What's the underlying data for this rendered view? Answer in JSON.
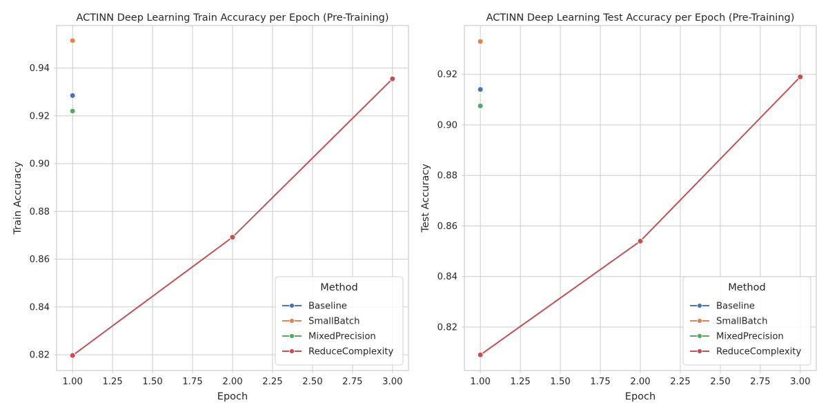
{
  "chart_data": [
    {
      "type": "line",
      "title": "ACTINN Deep Learning Train Accuracy per Epoch (Pre-Training)",
      "xlabel": "Epoch",
      "ylabel": "Train Accuracy",
      "xlim": [
        0.9,
        3.1
      ],
      "ylim": [
        0.8134,
        0.9578
      ],
      "xticks": [
        1.0,
        1.25,
        1.5,
        1.75,
        2.0,
        2.25,
        2.5,
        2.75,
        3.0
      ],
      "xtick_labels": [
        "1.00",
        "1.25",
        "1.50",
        "1.75",
        "2.00",
        "2.25",
        "2.50",
        "2.75",
        "3.00"
      ],
      "yticks": [
        0.82,
        0.84,
        0.86,
        0.88,
        0.9,
        0.92,
        0.94
      ],
      "ytick_labels": [
        "0.82",
        "0.84",
        "0.86",
        "0.88",
        "0.90",
        "0.92",
        "0.94"
      ],
      "grid": true,
      "legend": {
        "title": "Method",
        "position": "lower-right"
      },
      "series": [
        {
          "name": "Baseline",
          "color": "#4c72b0",
          "x": [
            1
          ],
          "y": [
            0.9285
          ]
        },
        {
          "name": "SmallBatch",
          "color": "#dd8452",
          "x": [
            1
          ],
          "y": [
            0.9515
          ]
        },
        {
          "name": "MixedPrecision",
          "color": "#55a868",
          "x": [
            1
          ],
          "y": [
            0.922
          ]
        },
        {
          "name": "ReduceComplexity",
          "color": "#c44e52",
          "x": [
            1,
            2,
            3
          ],
          "y": [
            0.8197,
            0.8692,
            0.9355
          ]
        }
      ]
    },
    {
      "type": "line",
      "title": "ACTINN Deep Learning Test Accuracy per Epoch (Pre-Training)",
      "xlabel": "Epoch",
      "ylabel": "Test Accuracy",
      "xlim": [
        0.9,
        3.1
      ],
      "ylim": [
        0.8028,
        0.9393
      ],
      "xticks": [
        1.0,
        1.25,
        1.5,
        1.75,
        2.0,
        2.25,
        2.5,
        2.75,
        3.0
      ],
      "xtick_labels": [
        "1.00",
        "1.25",
        "1.50",
        "1.75",
        "2.00",
        "2.25",
        "2.50",
        "2.75",
        "3.00"
      ],
      "yticks": [
        0.82,
        0.84,
        0.86,
        0.88,
        0.9,
        0.92
      ],
      "ytick_labels": [
        "0.82",
        "0.84",
        "0.86",
        "0.88",
        "0.90",
        "0.92"
      ],
      "grid": true,
      "legend": {
        "title": "Method",
        "position": "lower-right"
      },
      "series": [
        {
          "name": "Baseline",
          "color": "#4c72b0",
          "x": [
            1
          ],
          "y": [
            0.914
          ]
        },
        {
          "name": "SmallBatch",
          "color": "#dd8452",
          "x": [
            1
          ],
          "y": [
            0.933
          ]
        },
        {
          "name": "MixedPrecision",
          "color": "#55a868",
          "x": [
            1
          ],
          "y": [
            0.9075
          ]
        },
        {
          "name": "ReduceComplexity",
          "color": "#c44e52",
          "x": [
            1,
            2,
            3
          ],
          "y": [
            0.809,
            0.854,
            0.919
          ]
        }
      ]
    }
  ]
}
